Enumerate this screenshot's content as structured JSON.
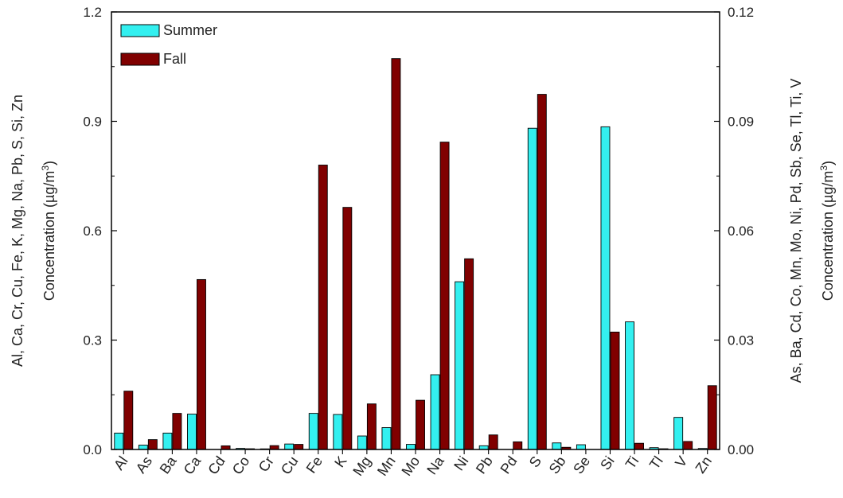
{
  "chart_data": {
    "type": "bar",
    "categories": [
      "Al",
      "As",
      "Ba",
      "Ca",
      "Cd",
      "Co",
      "Cr",
      "Cu",
      "Fe",
      "K",
      "Mg",
      "Mn",
      "Mo",
      "Na",
      "Ni",
      "Pb",
      "Pd",
      "S",
      "Sb",
      "Se",
      "Si",
      "Ti",
      "Tl",
      "V",
      "Zn"
    ],
    "series": [
      {
        "name": "Summer",
        "color": "#33f0f0",
        "values": [
          0.045,
          0.0012,
          0.0045,
          0.097,
          0.0,
          0.0003,
          0.0017,
          0.015,
          0.099,
          0.096,
          0.037,
          0.006,
          0.0014,
          0.205,
          0.046,
          0.0102,
          0.0,
          0.881,
          0.0018,
          0.0013,
          0.885,
          0.035,
          0.0005,
          0.0088,
          0.0028
        ]
      },
      {
        "name": "Fall",
        "color": "#800000",
        "values": [
          0.16,
          0.0027,
          0.0099,
          0.466,
          0.001,
          0.0002,
          0.0106,
          0.014,
          0.78,
          0.664,
          0.125,
          0.1072,
          0.0135,
          0.843,
          0.0523,
          0.0399,
          0.0021,
          0.974,
          0.0006,
          0.0,
          0.322,
          0.0017,
          0.0002,
          0.0022,
          0.175
        ]
      }
    ],
    "left_axis": {
      "label": "Al, Ca, Cr, Cu, Fe, K, Mg, Na, Pb, S, Si, Zn",
      "label2": "Concentration (µg/m³)",
      "ylim": [
        0,
        1.2
      ],
      "ticks": [
        "0.0",
        "0.3",
        "0.6",
        "0.9",
        "1.2"
      ]
    },
    "right_axis": {
      "label": "As, Ba, Cd, Co, Mn, Mo, Ni, Pd, Sb, Se, Tl, Ti, V",
      "label2": "Concentration (µg/m³)",
      "ylim": [
        0,
        0.12
      ],
      "ticks": [
        "0.00",
        "0.03",
        "0.06",
        "0.09",
        "0.12"
      ]
    },
    "right_axis_elements": [
      "As",
      "Ba",
      "Cd",
      "Co",
      "Mn",
      "Mo",
      "Ni",
      "Pd",
      "Sb",
      "Se",
      "Tl",
      "Ti",
      "V"
    ],
    "legend_position": "top-left",
    "grid": false
  }
}
